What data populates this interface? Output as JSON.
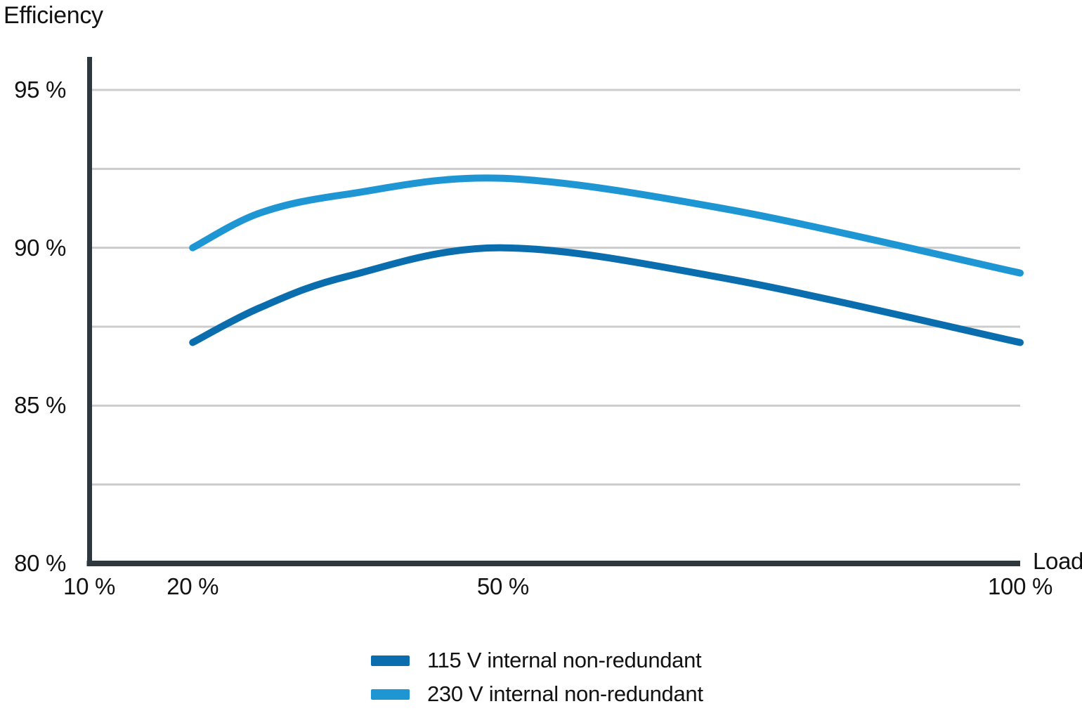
{
  "chart_data": {
    "type": "line",
    "title": "",
    "ylabel": "Efficiency",
    "xlabel": "Load",
    "xlim": [
      10,
      100
    ],
    "ylim": [
      80,
      95
    ],
    "grid": "horizontal",
    "legend_position": "bottom-center",
    "x_ticks": [
      {
        "value": 10,
        "label": "10 %"
      },
      {
        "value": 20,
        "label": "20 %"
      },
      {
        "value": 50,
        "label": "50 %"
      },
      {
        "value": 100,
        "label": "100 %"
      }
    ],
    "y_ticks": [
      {
        "value": 80,
        "label": "80 %"
      },
      {
        "value": 85,
        "label": "85 %"
      },
      {
        "value": 90,
        "label": "90 %"
      },
      {
        "value": 95,
        "label": "95 %"
      }
    ],
    "y_gridlines": [
      82.5,
      85,
      87.5,
      90,
      92.5,
      95
    ],
    "series": [
      {
        "name": "115 V internal non-redundant",
        "color": "#0a6dad",
        "points": [
          [
            20,
            87
          ],
          [
            26.5,
            88.1
          ],
          [
            35,
            89.1
          ],
          [
            50,
            90
          ],
          [
            72,
            89
          ],
          [
            100,
            87
          ]
        ]
      },
      {
        "name": "230 V internal non-redundant",
        "color": "#1e96d3",
        "points": [
          [
            20,
            90
          ],
          [
            26.5,
            91.1
          ],
          [
            35,
            91.7
          ],
          [
            50,
            92.2
          ],
          [
            72,
            91.2
          ],
          [
            100,
            89.2
          ]
        ]
      }
    ]
  },
  "colors": {
    "axis": "#2e373b",
    "gridline": "#cccccc",
    "text": "#121212",
    "background": "#ffffff"
  }
}
